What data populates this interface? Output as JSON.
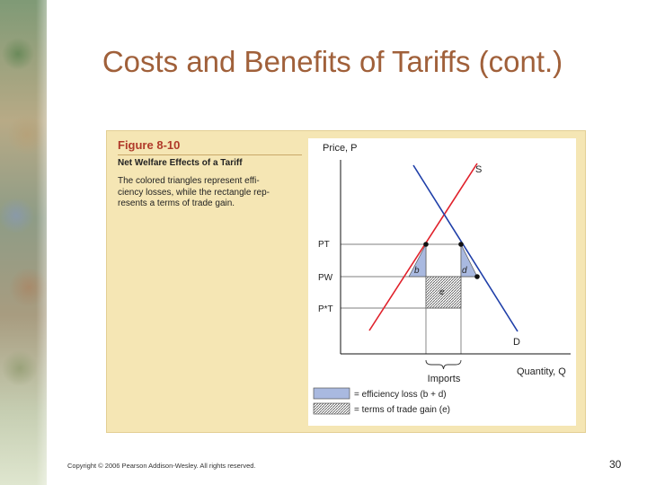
{
  "slide": {
    "title": "Costs and Benefits of Tariffs (cont.)",
    "copyright": "Copyright © 2006 Pearson Addison-Wesley. All rights reserved.",
    "page_number": "30"
  },
  "figure": {
    "number": "Figure 8-10",
    "subtitle": "Net Welfare Effects of a Tariff",
    "caption_lines": [
      "The colored triangles represent effi-",
      "ciency losses, while the rectangle rep-",
      "resents a terms of trade gain."
    ]
  },
  "graph": {
    "y_axis_label": "Price, P",
    "x_axis_label": "Quantity, Q",
    "supply_label": "S",
    "demand_label": "D",
    "price_labels": {
      "pt": "PT",
      "pw": "PW",
      "pt_star": "P*T"
    },
    "area_labels": {
      "b": "b",
      "d": "d",
      "e": "e"
    },
    "brace_label": "Imports",
    "legend": {
      "efficiency": "= efficiency loss (b + d)",
      "terms": "= terms of trade gain (e)"
    },
    "colors": {
      "supply": "#e0202a",
      "demand": "#1e3ea8",
      "triangle_fill": "#a9b9e0",
      "panel": "#f5e6b4"
    }
  }
}
